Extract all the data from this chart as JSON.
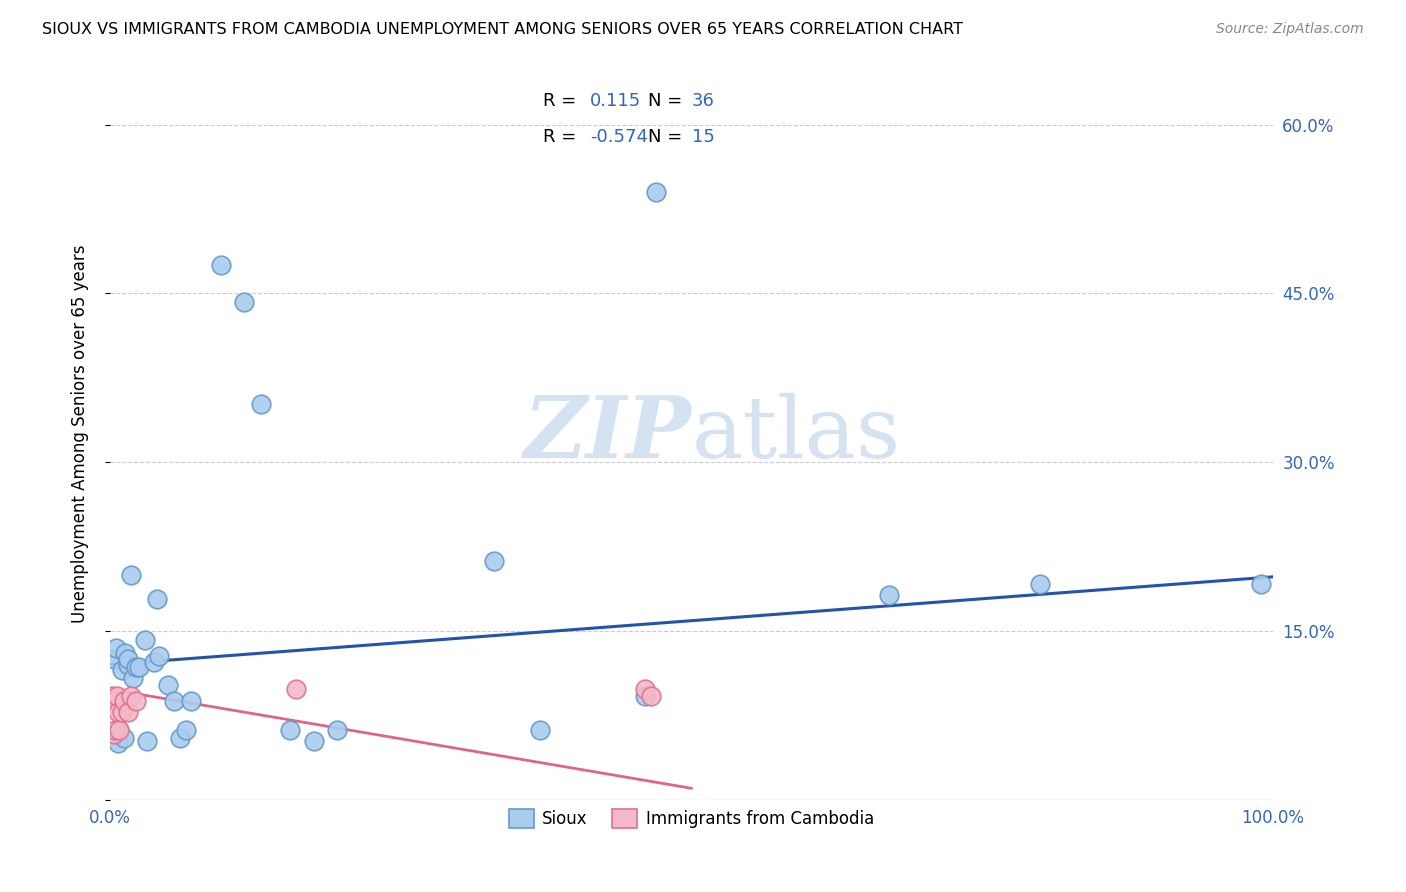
{
  "title": "SIOUX VS IMMIGRANTS FROM CAMBODIA UNEMPLOYMENT AMONG SENIORS OVER 65 YEARS CORRELATION CHART",
  "source": "Source: ZipAtlas.com",
  "ylabel": "Unemployment Among Seniors over 65 years",
  "xlim": [
    0,
    1.0
  ],
  "ylim": [
    0,
    0.65
  ],
  "xticks": [
    0.0,
    1.0
  ],
  "xticklabels": [
    "0.0%",
    "100.0%"
  ],
  "right_yticks": [
    0.15,
    0.3,
    0.45,
    0.6
  ],
  "right_yticklabels": [
    "15.0%",
    "30.0%",
    "45.0%",
    "60.0%"
  ],
  "sioux_color": "#aaccee",
  "sioux_edge_color": "#6699cc",
  "cambodia_color": "#f4b8c8",
  "cambodia_edge_color": "#e07090",
  "blue_line_color": "#2255aa",
  "pink_line_color": "#dd6688",
  "grid_color": "#cccccc",
  "watermark_color": "#d0dff0",
  "sioux_x": [
    0.003,
    0.005,
    0.007,
    0.008,
    0.01,
    0.012,
    0.013,
    0.015,
    0.015,
    0.018,
    0.02,
    0.022,
    0.025,
    0.03,
    0.032,
    0.038,
    0.04,
    0.042,
    0.05,
    0.055,
    0.06,
    0.065,
    0.07,
    0.095,
    0.115,
    0.13,
    0.155,
    0.175,
    0.195,
    0.33,
    0.37,
    0.46,
    0.47,
    0.67,
    0.8,
    0.99
  ],
  "sioux_y": [
    0.125,
    0.135,
    0.05,
    0.062,
    0.115,
    0.055,
    0.13,
    0.12,
    0.125,
    0.2,
    0.108,
    0.118,
    0.118,
    0.142,
    0.052,
    0.122,
    0.178,
    0.128,
    0.102,
    0.088,
    0.055,
    0.062,
    0.088,
    0.475,
    0.442,
    0.352,
    0.062,
    0.052,
    0.062,
    0.212,
    0.062,
    0.092,
    0.54,
    0.182,
    0.192,
    0.192
  ],
  "cambodia_x": [
    0.002,
    0.003,
    0.004,
    0.005,
    0.006,
    0.007,
    0.008,
    0.01,
    0.012,
    0.015,
    0.018,
    0.022,
    0.16,
    0.46,
    0.465
  ],
  "cambodia_y": [
    0.092,
    0.058,
    0.062,
    0.088,
    0.092,
    0.078,
    0.062,
    0.078,
    0.088,
    0.078,
    0.092,
    0.088,
    0.098,
    0.098,
    0.092
  ],
  "sioux_trend_x": [
    0.0,
    1.0
  ],
  "sioux_trend_y": [
    0.12,
    0.198
  ],
  "cambodia_trend_x": [
    0.0,
    0.5
  ],
  "cambodia_trend_y": [
    0.098,
    0.01
  ]
}
